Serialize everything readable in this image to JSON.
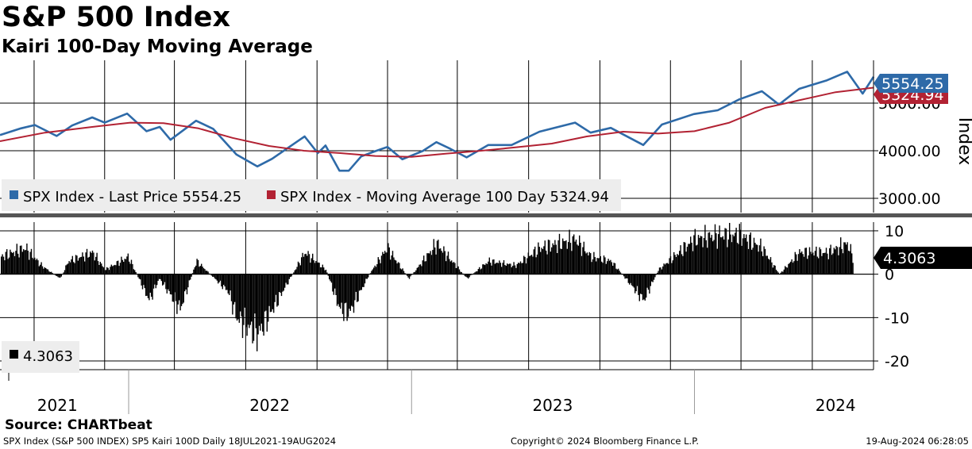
{
  "header": {
    "title": "S&P 500 Index",
    "subtitle": "Kairi 100-Day Moving Average"
  },
  "footer": {
    "source": "Source: CHARTbeat",
    "left": "SPX Index (S&P 500 INDEX) SP5 Kairi 100D  Daily 18JUL2021-19AUG2024",
    "center": "Copyright© 2024 Bloomberg Finance L.P.",
    "right": "19-Aug-2024 06:28:05"
  },
  "colors": {
    "price": "#2e6aa8",
    "ma": "#b22233",
    "kairi": "#000000",
    "grid": "#000000"
  },
  "chart_data": [
    {
      "type": "line",
      "panel": "top",
      "ylabel": "Index",
      "ylim": [
        2700,
        5900
      ],
      "yticks": [
        3000,
        4000,
        5000
      ],
      "ytick_labels": [
        "3000.00",
        "4000.00",
        "5000.00"
      ],
      "grid": true,
      "legend_position": "bottom-left",
      "series": [
        {
          "name": "SPX Index - Last Price",
          "legend_label": "SPX Index - Last Price 5554.25",
          "last_value_label": "5554.25",
          "color": "#2e6aa8",
          "x": [
            "2021-07-19",
            "2021-08-15",
            "2021-09-02",
            "2021-09-30",
            "2021-10-20",
            "2021-11-15",
            "2021-12-01",
            "2021-12-30",
            "2022-01-24",
            "2022-02-10",
            "2022-02-24",
            "2022-03-29",
            "2022-04-20",
            "2022-05-20",
            "2022-06-16",
            "2022-07-05",
            "2022-08-16",
            "2022-09-02",
            "2022-09-12",
            "2022-09-30",
            "2022-10-12",
            "2022-10-28",
            "2022-11-15",
            "2022-12-01",
            "2022-12-20",
            "2023-01-15",
            "2023-02-02",
            "2023-02-20",
            "2023-03-13",
            "2023-04-10",
            "2023-05-10",
            "2023-06-15",
            "2023-07-31",
            "2023-08-20",
            "2023-09-15",
            "2023-10-27",
            "2023-11-20",
            "2023-12-31",
            "2024-01-31",
            "2024-02-28",
            "2024-03-28",
            "2024-04-19",
            "2024-05-15",
            "2024-06-20",
            "2024-07-16",
            "2024-08-05",
            "2024-08-19"
          ],
          "y": [
            4330,
            4470,
            4540,
            4310,
            4530,
            4700,
            4590,
            4780,
            4410,
            4500,
            4230,
            4630,
            4460,
            3920,
            3670,
            3830,
            4300,
            3950,
            4110,
            3580,
            3580,
            3880,
            3990,
            4080,
            3820,
            3990,
            4180,
            4040,
            3860,
            4120,
            4120,
            4400,
            4590,
            4380,
            4480,
            4120,
            4550,
            4770,
            4850,
            5080,
            5250,
            4970,
            5300,
            5480,
            5660,
            5200,
            5554
          ]
        },
        {
          "name": "SPX Index - Moving Average 100 Day",
          "legend_label": "SPX Index - Moving Average 100 Day 5324.94",
          "last_value_label": "5324.94",
          "color": "#b22233",
          "x": [
            "2021-07-19",
            "2021-09-15",
            "2021-11-15",
            "2022-01-03",
            "2022-02-15",
            "2022-04-01",
            "2022-05-15",
            "2022-07-01",
            "2022-08-15",
            "2022-10-01",
            "2022-11-15",
            "2023-01-01",
            "2023-02-15",
            "2023-04-01",
            "2023-05-15",
            "2023-07-01",
            "2023-08-15",
            "2023-10-01",
            "2023-11-15",
            "2024-01-01",
            "2024-02-15",
            "2024-04-01",
            "2024-05-15",
            "2024-07-01",
            "2024-08-19"
          ],
          "y": [
            4200,
            4380,
            4500,
            4590,
            4580,
            4470,
            4270,
            4100,
            4000,
            3950,
            3890,
            3870,
            3940,
            4000,
            4070,
            4150,
            4300,
            4400,
            4360,
            4410,
            4590,
            4900,
            5060,
            5230,
            5325
          ]
        }
      ]
    },
    {
      "type": "bar",
      "panel": "bottom",
      "ylim": [
        -22,
        12
      ],
      "yticks": [
        10,
        0,
        -10,
        -20
      ],
      "ytick_labels": [
        "10",
        "0",
        "-10",
        "-20"
      ],
      "grid": true,
      "legend_position": "bottom-left",
      "series": [
        {
          "name": "Kairi 100D",
          "legend_label": "4.3063",
          "last_value_label": "4.3063",
          "color": "#000000",
          "x": [
            "2021-07-19",
            "2021-08-20",
            "2021-09-10",
            "2021-10-04",
            "2021-10-15",
            "2021-11-15",
            "2021-12-01",
            "2021-12-31",
            "2022-01-27",
            "2022-02-09",
            "2022-03-08",
            "2022-03-29",
            "2022-05-09",
            "2022-05-20",
            "2022-06-16",
            "2022-07-05",
            "2022-08-16",
            "2022-09-12",
            "2022-09-30",
            "2022-10-12",
            "2022-11-07",
            "2022-11-30",
            "2022-12-28",
            "2023-01-15",
            "2023-02-02",
            "2023-03-13",
            "2023-04-10",
            "2023-05-15",
            "2023-06-15",
            "2023-07-31",
            "2023-08-20",
            "2023-09-15",
            "2023-10-27",
            "2023-11-15",
            "2023-12-31",
            "2024-01-31",
            "2024-02-28",
            "2024-03-28",
            "2024-04-19",
            "2024-05-15",
            "2024-06-20",
            "2024-07-16",
            "2024-08-05",
            "2024-08-19"
          ],
          "y": [
            4,
            6,
            2,
            -1,
            3,
            5,
            1,
            4,
            -6,
            -1,
            -8,
            3,
            -4,
            -10,
            -14,
            -8,
            5,
            1,
            -8,
            -9,
            0,
            6,
            -1,
            3,
            7,
            -1,
            3,
            2,
            6,
            8,
            4,
            3,
            -6,
            1,
            8,
            9,
            9,
            6,
            0,
            5,
            5,
            7,
            -2,
            4.3063
          ]
        }
      ]
    }
  ],
  "x_axis": {
    "year_labels": [
      "2021",
      "2022",
      "2023",
      "2024"
    ],
    "year_label_dates": [
      "2021-10-01",
      "2022-07-02",
      "2023-07-02",
      "2024-07-01"
    ],
    "year_boundaries": [
      "2022-01-01",
      "2023-01-01",
      "2024-01-01"
    ],
    "gridline_dates": [
      "2021-09-01",
      "2021-12-01",
      "2022-03-01",
      "2022-06-01",
      "2022-09-01",
      "2022-12-01",
      "2023-03-01",
      "2023-06-01",
      "2023-09-01",
      "2023-12-01",
      "2024-03-01",
      "2024-06-01"
    ]
  }
}
